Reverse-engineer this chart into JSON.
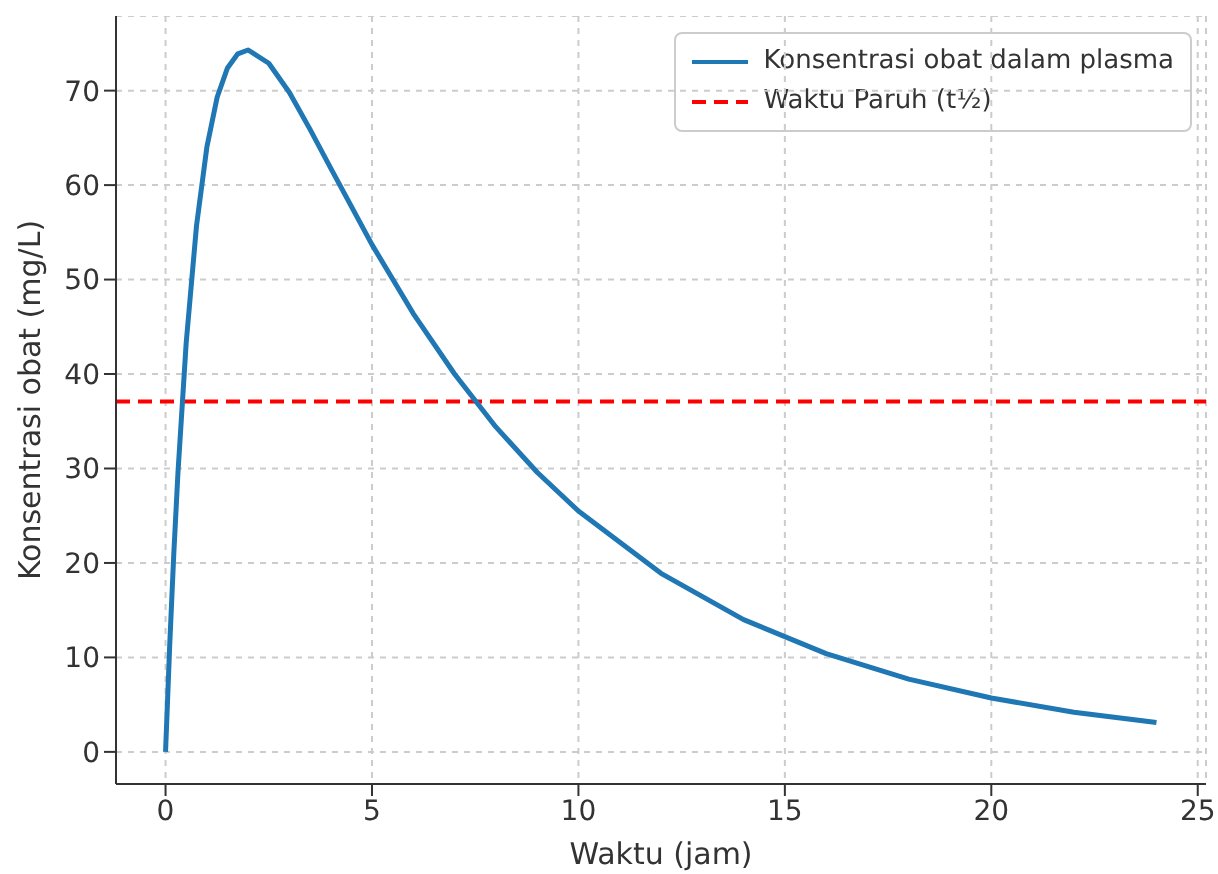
{
  "chart_data": {
    "type": "line",
    "xlabel": "Waktu (jam)",
    "ylabel": "Konsentrasi obat (mg/L)",
    "x": [
      0,
      0.1,
      0.2,
      0.3,
      0.5,
      0.75,
      1,
      1.25,
      1.5,
      1.75,
      2,
      2.5,
      3,
      3.5,
      4,
      5,
      6,
      7,
      8,
      9,
      10,
      12,
      14,
      16,
      18,
      20,
      22,
      24
    ],
    "series": [
      {
        "name": "Konsentrasi obat dalam plasma",
        "color": "#1f77b4",
        "values": [
          0,
          11.2,
          21.0,
          29.5,
          43.3,
          55.7,
          64.0,
          69.3,
          72.4,
          73.9,
          74.3,
          72.9,
          69.8,
          65.9,
          61.8,
          53.7,
          46.4,
          40.0,
          34.4,
          29.6,
          25.5,
          18.9,
          14.0,
          10.4,
          7.7,
          5.7,
          4.2,
          3.1
        ]
      }
    ],
    "ref_lines": [
      {
        "axis": "y",
        "value": 37.1,
        "label": "Waktu Paruh (t½)",
        "color": "#ff0000",
        "line_style": "dashed"
      }
    ],
    "xlim": [
      -1.2,
      25.2
    ],
    "xticks": [
      0,
      5,
      10,
      15,
      20,
      25
    ],
    "ylim": [
      -3.4,
      77.9
    ],
    "yticks": [
      0,
      10,
      20,
      30,
      40,
      50,
      60,
      70
    ],
    "grid": true,
    "legend": "top right",
    "marker": "none",
    "line_style": "solid"
  }
}
